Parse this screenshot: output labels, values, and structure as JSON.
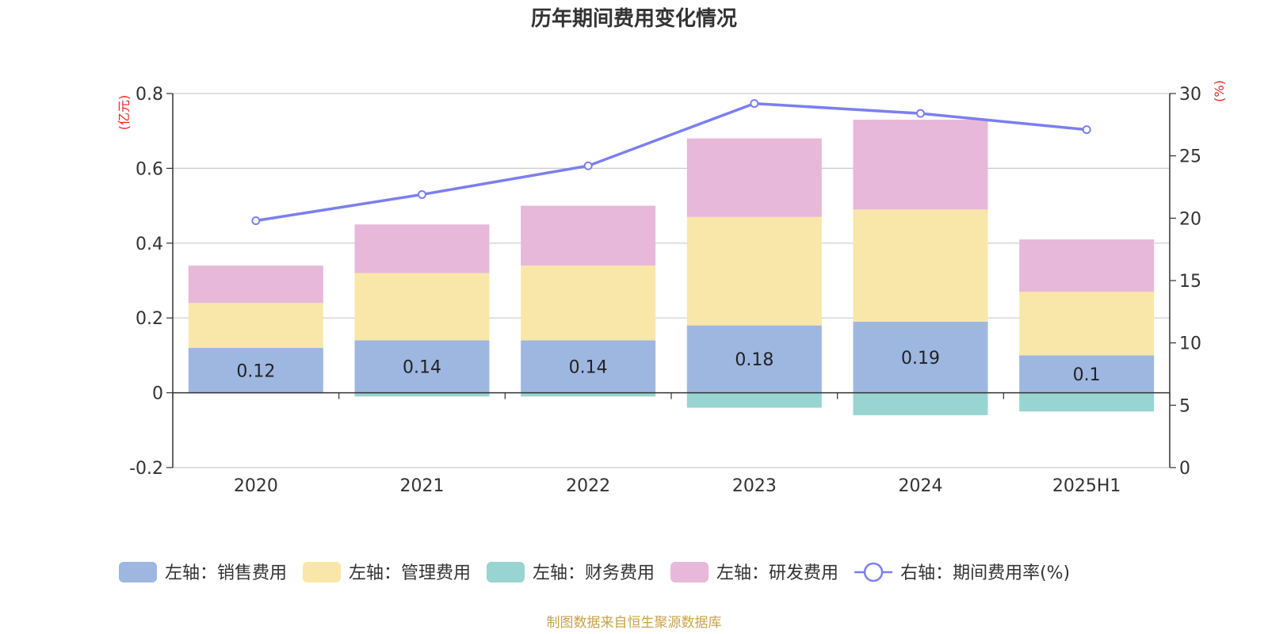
{
  "chart_data": {
    "type": "bar",
    "title": "历年期间费用变化情况",
    "categories": [
      "2020",
      "2021",
      "2022",
      "2023",
      "2024",
      "2025H1"
    ],
    "left_axis": {
      "unit_label": "(亿元)",
      "ylim": [
        -0.2,
        0.8
      ],
      "ticks": [
        "-0.2",
        "0",
        "0.2",
        "0.4",
        "0.6",
        "0.8"
      ]
    },
    "right_axis": {
      "unit_label": "(%)",
      "ylim": [
        0,
        30
      ],
      "ticks": [
        "0",
        "5",
        "10",
        "15",
        "20",
        "25",
        "30"
      ]
    },
    "series": [
      {
        "name": "左轴：销售费用",
        "color": "#9db7e1",
        "values": [
          0.12,
          0.14,
          0.14,
          0.18,
          0.19,
          0.1
        ],
        "data_labels": [
          "0.12",
          "0.14",
          "0.14",
          "0.18",
          "0.19",
          "0.1"
        ]
      },
      {
        "name": "左轴：管理费用",
        "color": "#f8e7a8",
        "values": [
          0.12,
          0.18,
          0.2,
          0.29,
          0.3,
          0.17
        ]
      },
      {
        "name": "左轴：财务费用",
        "color": "#98d4d2",
        "values": [
          0.0,
          -0.01,
          -0.01,
          -0.04,
          -0.06,
          -0.05
        ]
      },
      {
        "name": "左轴：研发费用",
        "color": "#e7b8d9",
        "values": [
          0.1,
          0.13,
          0.16,
          0.21,
          0.24,
          0.14
        ]
      },
      {
        "name": "右轴：期间费用率(%)",
        "type": "line",
        "axis": "right",
        "color": "#7b7ff0",
        "values": [
          19.8,
          21.9,
          24.2,
          29.2,
          28.4,
          27.1
        ]
      }
    ],
    "grid": true,
    "legend_position": "bottom"
  },
  "footer": {
    "source": "制图数据来自恒生聚源数据库"
  },
  "colors": {
    "unit_label": "#e8251f",
    "source_text": "#c9a24a",
    "axis": "#333333",
    "grid": "#cccccc"
  }
}
